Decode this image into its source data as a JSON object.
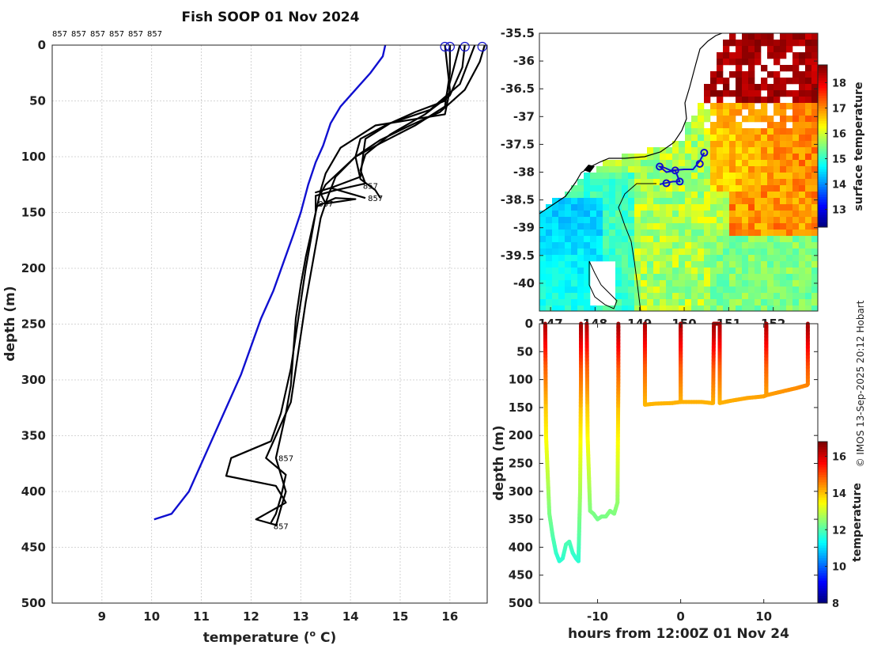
{
  "chart_data": [
    {
      "type": "line",
      "title": "Fish SOOP 01 Nov 2024",
      "xlabel": "temperature (° C)",
      "xlabel_main": "temperature (",
      "xlabel_sup": "o",
      "xlabel_tail": " C)",
      "ylabel": "depth (m)",
      "xlim": [
        8,
        16.75
      ],
      "ylim": [
        500,
        0
      ],
      "xticks": [
        9,
        10,
        11,
        12,
        13,
        14,
        15,
        16
      ],
      "yticks": [
        0,
        50,
        100,
        150,
        200,
        250,
        300,
        350,
        400,
        450,
        500
      ],
      "grid": true,
      "header_labels": [
        "857",
        "857",
        "857",
        "857",
        "857",
        "857"
      ],
      "profile_labels": [
        {
          "text": "857",
          "x": 14.25,
          "y": 126
        },
        {
          "text": "857",
          "x": 13.35,
          "y": 142
        },
        {
          "text": "857",
          "x": 14.35,
          "y": 137
        },
        {
          "text": "857",
          "x": 12.55,
          "y": 370
        },
        {
          "text": "857",
          "x": 12.45,
          "y": 431
        }
      ],
      "climatology": {
        "name": "",
        "color": "#1010d0",
        "x": [
          14.7,
          14.65,
          14.4,
          14.2,
          14.0,
          13.8,
          13.6,
          13.45,
          13.3,
          13.15,
          13.0,
          12.85,
          12.65,
          12.45,
          12.2,
          12.0,
          11.8,
          11.55,
          11.3,
          11.0,
          10.75,
          10.4,
          10.05
        ],
        "y": [
          0,
          10,
          25,
          35,
          45,
          55,
          70,
          90,
          105,
          125,
          150,
          170,
          195,
          220,
          245,
          270,
          295,
          320,
          345,
          375,
          400,
          420,
          425
        ]
      },
      "profiles": [
        {
          "x": [
            15.9,
            15.95,
            16.0,
            15.9,
            14.5,
            13.8,
            13.5,
            13.4,
            13.3,
            13.2,
            13.1,
            13.0,
            12.9,
            12.85,
            12.8,
            12.7,
            12.6,
            12.5,
            12.6,
            12.7,
            12.6,
            12.5
          ],
          "y": [
            0,
            20,
            40,
            62,
            72,
            92,
            115,
            130,
            150,
            170,
            190,
            215,
            245,
            275,
            305,
            330,
            350,
            370,
            385,
            400,
            415,
            431
          ]
        },
        {
          "x": [
            16.0,
            16.0,
            15.9,
            15.3,
            14.6,
            14.1,
            13.7,
            13.55,
            13.4,
            13.3,
            13.2,
            13.1,
            13.0,
            12.9,
            12.8,
            12.5,
            12.3,
            12.7,
            12.6,
            12.5,
            12.4
          ],
          "y": [
            0,
            25,
            55,
            72,
            88,
            100,
            118,
            135,
            155,
            180,
            205,
            230,
            260,
            290,
            320,
            350,
            370,
            385,
            405,
            420,
            428
          ]
        },
        {
          "x": [
            16.3,
            16.25,
            16.0,
            15.5,
            14.8,
            14.3,
            14.2,
            14.3,
            13.7,
            13.3,
            13.3,
            13.2,
            13.1,
            13.0,
            12.9,
            12.8,
            12.6,
            12.4,
            11.6,
            11.5,
            12.5,
            12.7,
            12.3,
            12.1,
            12.5
          ],
          "y": [
            0,
            20,
            45,
            62,
            80,
            98,
            112,
            124,
            130,
            135,
            150,
            175,
            200,
            230,
            260,
            290,
            330,
            355,
            370,
            386,
            395,
            410,
            420,
            425,
            430
          ]
        },
        {
          "x": [
            16.7,
            16.6,
            16.3,
            15.8,
            15.2,
            14.6,
            14.1,
            13.5,
            13.4,
            13.5,
            14.1,
            13.7,
            13.3
          ],
          "y": [
            0,
            15,
            40,
            60,
            72,
            85,
            100,
            125,
            133,
            142,
            138,
            137,
            145
          ]
        },
        {
          "x": [
            16.5,
            16.2,
            15.6,
            14.8,
            14.3,
            14.25,
            14.2,
            13.6,
            13.3,
            13.6,
            14.3
          ],
          "y": [
            0,
            35,
            58,
            70,
            84,
            100,
            118,
            128,
            132,
            128,
            137
          ]
        },
        {
          "x": [
            16.2,
            15.9,
            15.3,
            14.7,
            14.2,
            14.1,
            14.2,
            14.5,
            14.6
          ],
          "y": [
            0,
            50,
            60,
            72,
            84,
            100,
            120,
            130,
            137
          ]
        }
      ],
      "surface_markers_x": [
        15.9,
        16.0,
        16.3,
        16.65
      ]
    },
    {
      "type": "heatmap",
      "title": "",
      "xlim": [
        146.75,
        153.0
      ],
      "ylim": [
        -40.5,
        -35.5
      ],
      "xticks": [
        147,
        148,
        149,
        150,
        151,
        152
      ],
      "xtick_labels": [
        "147",
        "148",
        "149",
        "150",
        "151",
        "152"
      ],
      "yticks": [
        -35.5,
        -36,
        -36.5,
        -37,
        -37.5,
        -38,
        -38.5,
        -39,
        -39.5,
        -40
      ],
      "ytick_labels": [
        "-35.5",
        "-36",
        "-36.5",
        "-37",
        "-37.5",
        "-38",
        "-38.5",
        "-39",
        "-39.5",
        "-40"
      ],
      "colorbar_label": "surface temperature",
      "colorbar_ticks": [
        13,
        14,
        15,
        16,
        17,
        18
      ],
      "colorbar_tick_labels": [
        "13",
        "14",
        "15",
        "16",
        "17",
        "18"
      ],
      "colorbar_range": [
        12.3,
        18.7
      ],
      "track": {
        "color": "#1010d0",
        "lon": [
          150.45,
          150.35,
          150.2,
          150.0,
          149.7,
          149.5,
          149.45,
          149.6,
          149.8,
          149.9,
          149.75,
          149.55,
          149.45
        ],
        "lat": [
          -37.65,
          -37.8,
          -37.95,
          -37.95,
          -37.97,
          -37.9,
          -37.9,
          -38.0,
          -37.97,
          -38.17,
          -38.17,
          -38.2,
          -38.22
        ]
      },
      "track_markers": [
        {
          "lon": 150.45,
          "lat": -37.65
        },
        {
          "lon": 150.35,
          "lat": -37.85
        },
        {
          "lon": 149.45,
          "lat": -37.9
        },
        {
          "lon": 149.8,
          "lat": -37.97
        },
        {
          "lon": 149.9,
          "lat": -38.17
        },
        {
          "lon": 149.6,
          "lat": -38.2
        }
      ]
    },
    {
      "type": "scatter",
      "title": "",
      "xlabel": "hours from 12:00Z 01 Nov 24",
      "ylabel": "depth (m)",
      "xlim": [
        -17,
        16.5
      ],
      "ylim": [
        500,
        0
      ],
      "xticks": [
        -10,
        0,
        10
      ],
      "xtick_labels": [
        "-10",
        "0",
        "10"
      ],
      "yticks": [
        0,
        50,
        100,
        150,
        200,
        250,
        300,
        350,
        400,
        450,
        500
      ],
      "colorbar_label": "temperature",
      "colorbar_ticks": [
        8,
        10,
        12,
        14,
        16
      ],
      "colorbar_tick_labels": [
        "8",
        "10",
        "12",
        "14",
        "16"
      ],
      "colorbar_range": [
        8,
        16.8
      ],
      "segments": [
        {
          "t": [
            -16.3,
            -16.2,
            -15.8,
            -15.4,
            -15.0,
            -14.6,
            -14.2,
            -13.8,
            -13.4,
            -13.0,
            -12.6,
            -12.3,
            -12.1,
            -12.0,
            -12.0
          ],
          "d": [
            0,
            200,
            340,
            380,
            410,
            425,
            420,
            395,
            390,
            410,
            420,
            425,
            300,
            100,
            0
          ]
        },
        {
          "t": [
            -11.3,
            -11.2,
            -10.9,
            -10.5,
            -10.0,
            -9.5,
            -9.0,
            -8.5,
            -8.0,
            -7.6,
            -7.5,
            -7.5
          ],
          "d": [
            0,
            200,
            335,
            340,
            350,
            345,
            345,
            335,
            340,
            320,
            100,
            0
          ]
        },
        {
          "t": [
            -4.3,
            -4.3,
            -3.0,
            -1.0,
            0.0,
            0.0,
            0.0,
            1.0,
            2.5,
            3.7,
            3.9,
            4.0,
            4.0,
            4.5,
            4.7,
            4.7
          ],
          "d": [
            0,
            145,
            143,
            142,
            140,
            0,
            140,
            140,
            140,
            142,
            142,
            0,
            0,
            0,
            0,
            142
          ]
        },
        {
          "t": [
            4.7,
            6.0,
            8.0,
            10.0,
            10.3,
            10.3,
            10.3,
            12.0,
            14.0,
            15.2,
            15.3,
            15.3
          ],
          "d": [
            142,
            138,
            133,
            130,
            128,
            0,
            128,
            122,
            115,
            110,
            108,
            0
          ]
        }
      ]
    }
  ],
  "credit": "© IMOS 13-Sep-2025 20:12 Hobart"
}
